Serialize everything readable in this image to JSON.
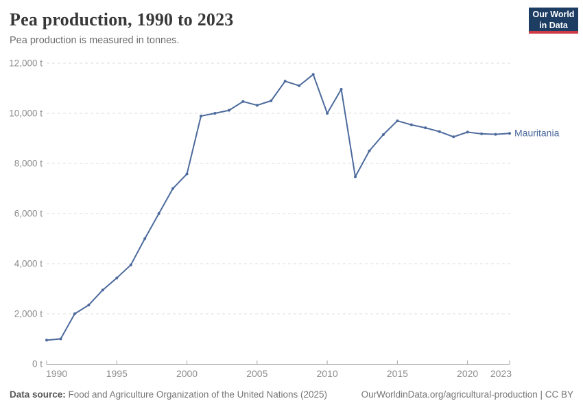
{
  "header": {
    "title": "Pea production, 1990 to 2023",
    "subtitle": "Pea production is measured in tonnes.",
    "logo": {
      "line1": "Our World",
      "line2": "in Data"
    }
  },
  "chart_data": {
    "type": "line",
    "title": "Pea production, 1990 to 2023",
    "unit": "tonnes",
    "x": [
      1990,
      1991,
      1992,
      1993,
      1994,
      1995,
      1996,
      1997,
      1998,
      1999,
      2000,
      2001,
      2002,
      2003,
      2004,
      2005,
      2006,
      2007,
      2008,
      2009,
      2010,
      2011,
      2012,
      2013,
      2014,
      2015,
      2016,
      2017,
      2018,
      2019,
      2020,
      2021,
      2022,
      2023
    ],
    "series": [
      {
        "name": "Mauritania",
        "color": "#4c6a9c",
        "values": [
          950,
          1000,
          2000,
          2350,
          2950,
          3430,
          3950,
          5000,
          6000,
          7000,
          7580,
          9890,
          10000,
          10120,
          10470,
          10320,
          10500,
          11280,
          11100,
          11550,
          10000,
          10960,
          7470,
          8500,
          9150,
          9700,
          9540,
          9420,
          9270,
          9060,
          9250,
          9180,
          9160,
          9200
        ]
      }
    ],
    "xlim": [
      1990,
      2023
    ],
    "ylim": [
      0,
      12000
    ],
    "x_ticks": [
      1990,
      1995,
      2000,
      2005,
      2010,
      2015,
      2020,
      2023
    ],
    "y_ticks": [
      0,
      2000,
      4000,
      6000,
      8000,
      10000,
      12000
    ],
    "y_tick_suffix": " t",
    "grid": "horizontal-dashed",
    "legend_position": "end-of-line"
  },
  "colors": {
    "line": "#4c6a9c",
    "grid": "#dddddd",
    "axis": "#a5a5a5",
    "tick_text": "#8b8b8b",
    "title_text": "#383838",
    "subtitle_text": "#6d6d6d",
    "footer_text": "#757575",
    "logo_bg": "#1d3d63",
    "logo_red": "#cf3b44"
  },
  "footer": {
    "source_label": "Data source:",
    "source_text": " Food and Agriculture Organization of the United Nations (2025)",
    "link_text": "OurWorldinData.org/agricultural-production | CC BY"
  }
}
